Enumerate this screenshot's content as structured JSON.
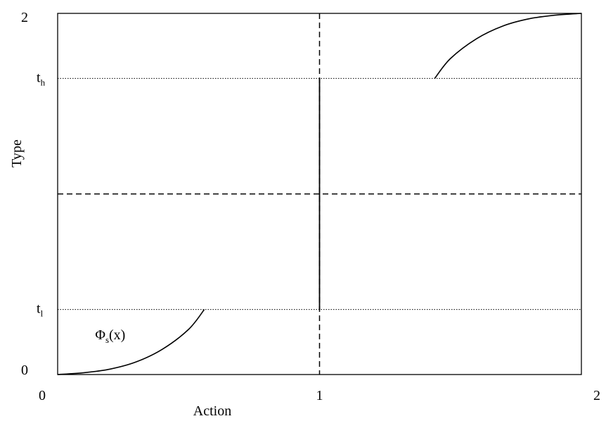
{
  "chart_data": {
    "type": "line",
    "xlabel": "Action",
    "ylabel": "Type",
    "xlim": [
      0,
      2
    ],
    "ylim": [
      0,
      2
    ],
    "x_ticks": [
      {
        "value": 0,
        "label": "0"
      },
      {
        "value": 1,
        "label": "1"
      },
      {
        "value": 2,
        "label": "2"
      }
    ],
    "y_ticks": [
      {
        "value": 0,
        "label": "0"
      },
      {
        "value": 2,
        "label": "2"
      }
    ],
    "y_levels": [
      {
        "value": 0.36,
        "label_main": "t",
        "label_sub": "l",
        "style": "dotted"
      },
      {
        "value": 1.64,
        "label_main": "t",
        "label_sub": "h",
        "style": "dotted"
      }
    ],
    "dashed_lines": [
      {
        "orientation": "vertical",
        "value": 1
      },
      {
        "orientation": "horizontal",
        "value": 1
      }
    ],
    "jump_segment": {
      "x": 1,
      "y_from": 0.36,
      "y_to": 1.64
    },
    "series": [
      {
        "points": [
          [
            0,
            0
          ],
          [
            0.1,
            0.01
          ],
          [
            0.2,
            0.03
          ],
          [
            0.3,
            0.07
          ],
          [
            0.4,
            0.14
          ],
          [
            0.5,
            0.25
          ],
          [
            0.56,
            0.36
          ]
        ]
      },
      {
        "points": [
          [
            1.44,
            1.64
          ],
          [
            1.5,
            1.75
          ],
          [
            1.6,
            1.86
          ],
          [
            1.7,
            1.93
          ],
          [
            1.8,
            1.97
          ],
          [
            1.9,
            1.99
          ],
          [
            2,
            2
          ]
        ]
      }
    ],
    "annotations": [
      {
        "text_main": "Φ",
        "text_sub": "s",
        "text_tail": "(x)",
        "x": 0.17,
        "y": 0.25
      }
    ]
  }
}
